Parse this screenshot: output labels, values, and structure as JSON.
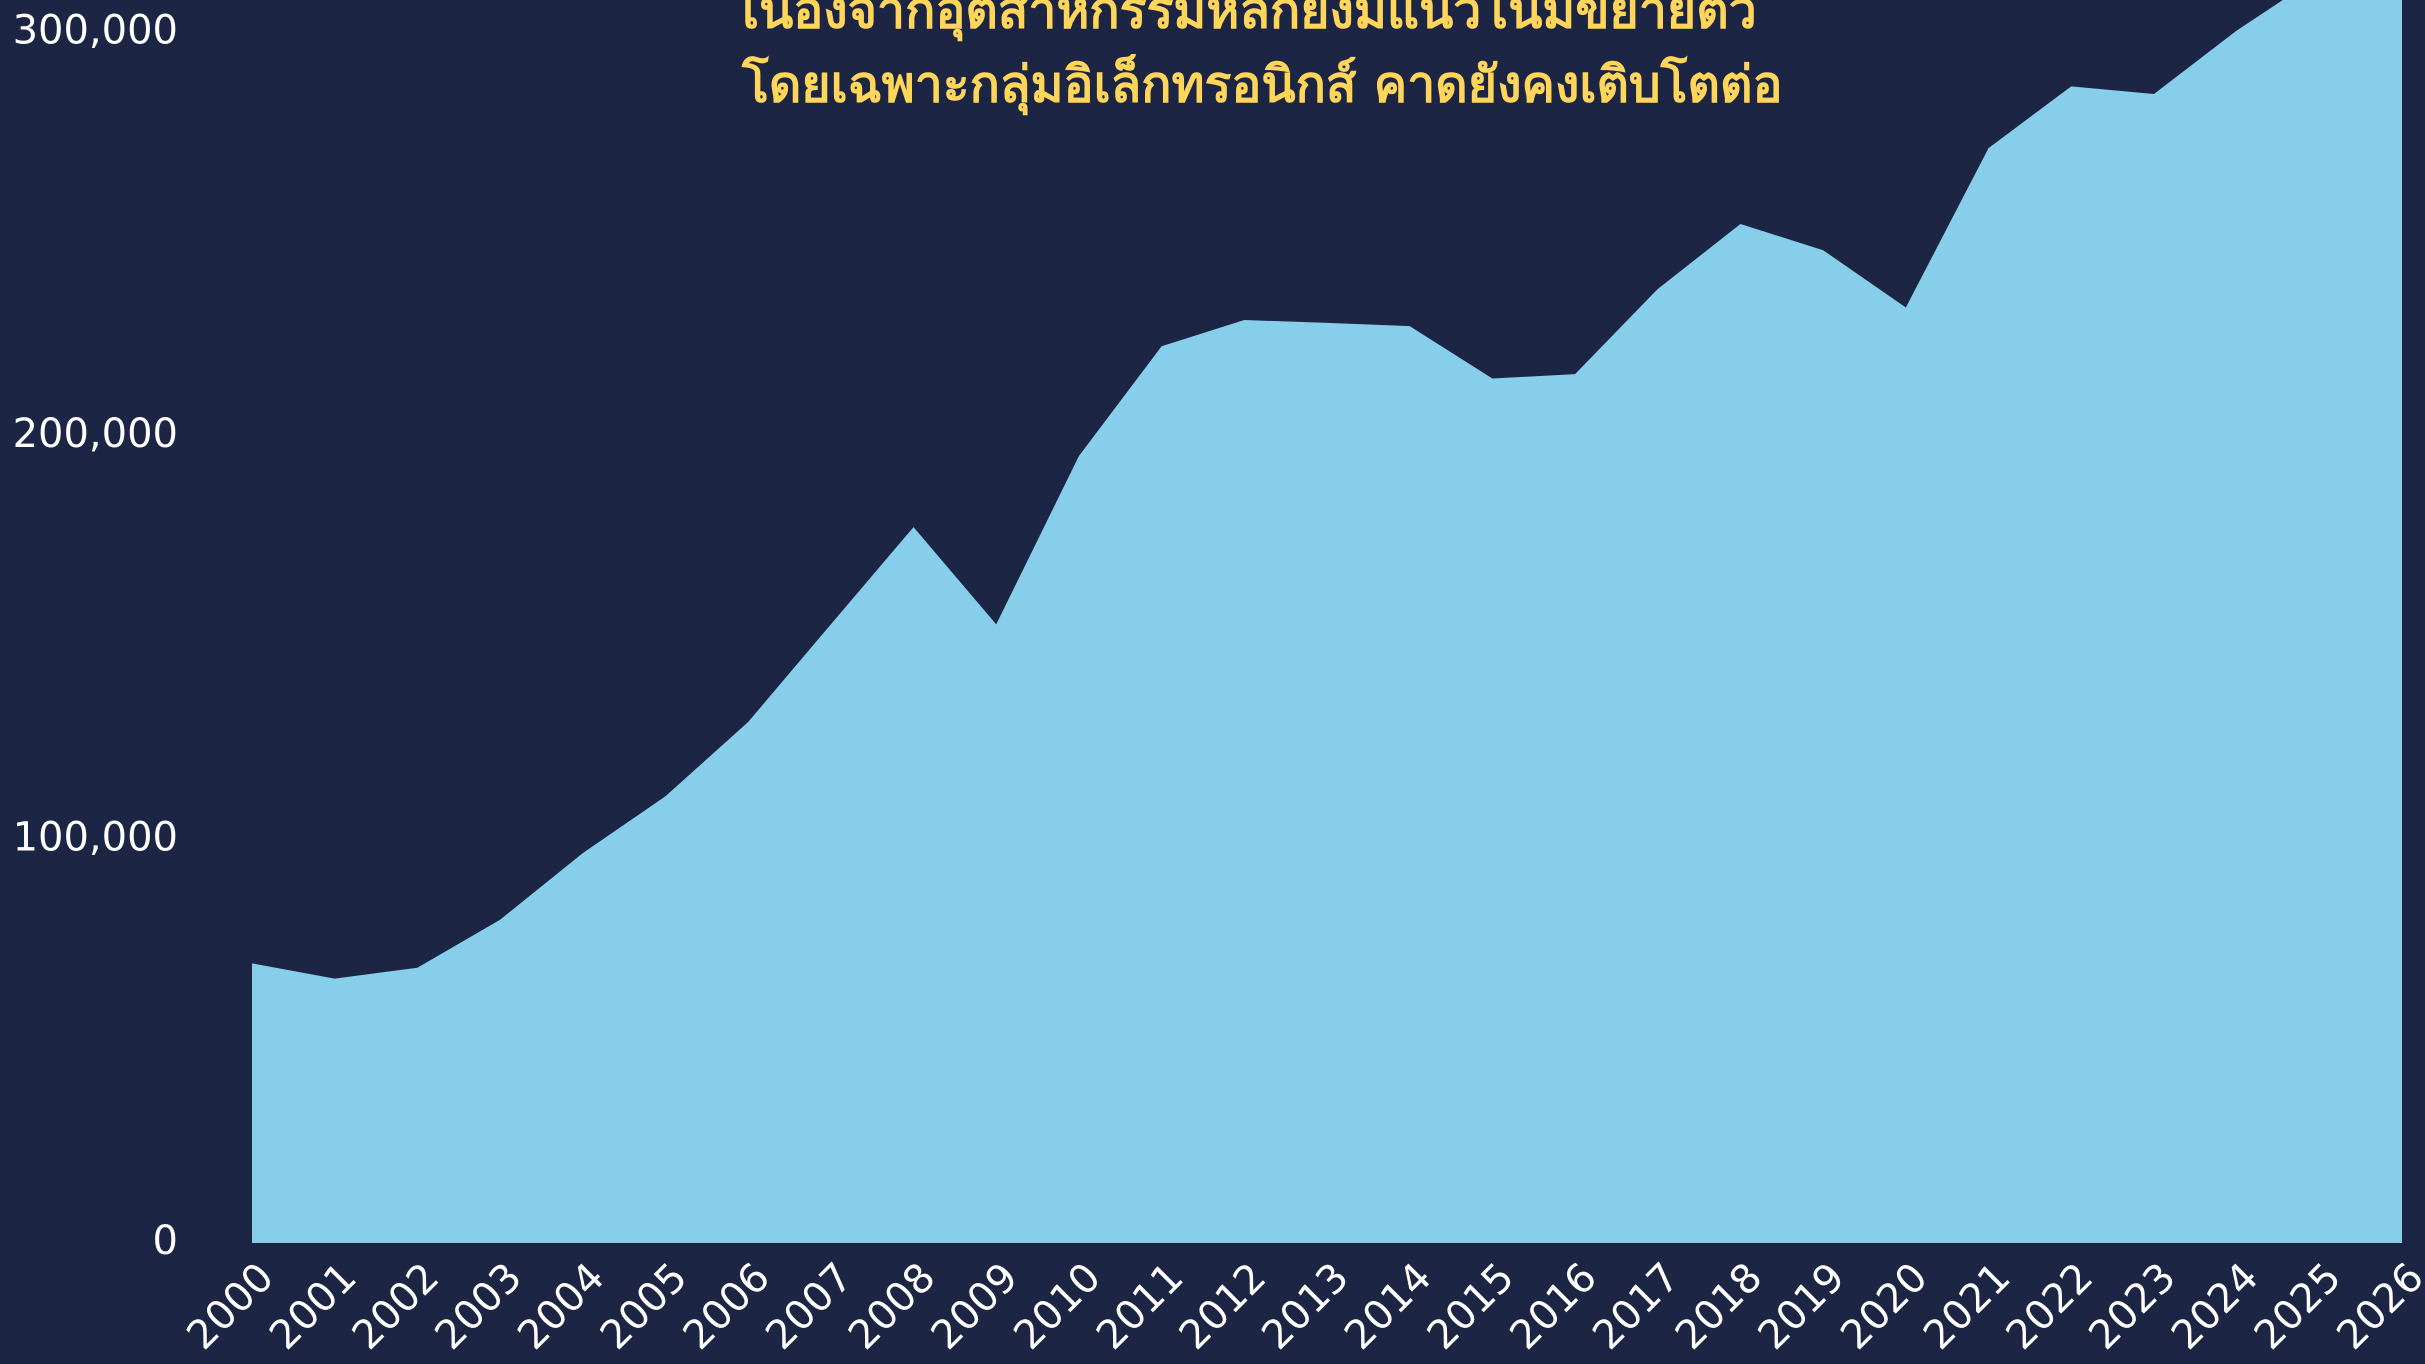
{
  "chart_data": {
    "type": "area",
    "annotation": [
      "เนื่องจากอุตสาหกรรมหลักยังมีแนวโน้มขยายตัว",
      "โดยเฉพาะกลุ่มอิเล็กทรอนิกส์ คาดยังคงเติบโตต่อ"
    ],
    "categories": [
      "2000",
      "2001",
      "2002",
      "2003",
      "2004",
      "2005",
      "2006",
      "2007",
      "2008",
      "2009",
      "2010",
      "2011",
      "2012",
      "2013",
      "2014",
      "2015",
      "2016",
      "2017",
      "2018",
      "2019",
      "2020",
      "2021",
      "2022",
      "2023",
      "2024",
      "2025",
      "2026"
    ],
    "values": [
      69300,
      65500,
      68200,
      80100,
      96600,
      110700,
      129100,
      153300,
      177400,
      153300,
      195000,
      222200,
      228700,
      228000,
      227200,
      214200,
      215300,
      236400,
      252500,
      246000,
      231800,
      271300,
      286600,
      284700,
      300400,
      314000,
      318000
    ],
    "color": "#87ceeb",
    "ylim": [
      0,
      308000
    ],
    "yticks": [
      0,
      {
        "value": 100000,
        "label": "100,000"
      },
      {
        "value": 200000,
        "label": "200,000"
      },
      {
        "value": 300000,
        "label": "300,000"
      }
    ]
  }
}
